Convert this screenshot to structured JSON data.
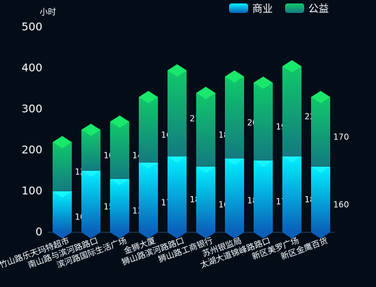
{
  "chart_data": {
    "type": "stacked_bar",
    "y_axis_label": "小时",
    "categories": [
      "竹山路乐天玛特超市",
      "南山路与滨河路路口",
      "滨河路国际生活广场",
      "金狮大厦",
      "狮山路滨河路路口",
      "狮山路工商银行",
      "苏州银监局",
      "太湖大道锦峰路路口",
      "新区美罗广场",
      "新区金鹰百货"
    ],
    "series": [
      {
        "name": "商业",
        "color": "#00d8ff",
        "values": [
          100,
          150,
          130,
          170,
          185,
          160,
          180,
          175,
          185,
          160
        ]
      },
      {
        "name": "公益",
        "color": "#10c878",
        "values": [
          120,
          100,
          140,
          160,
          210,
          180,
          200,
          190,
          220,
          170
        ]
      }
    ],
    "ylim": [
      0,
      500
    ],
    "yticks": [
      0,
      100,
      200,
      300,
      400,
      500
    ]
  }
}
